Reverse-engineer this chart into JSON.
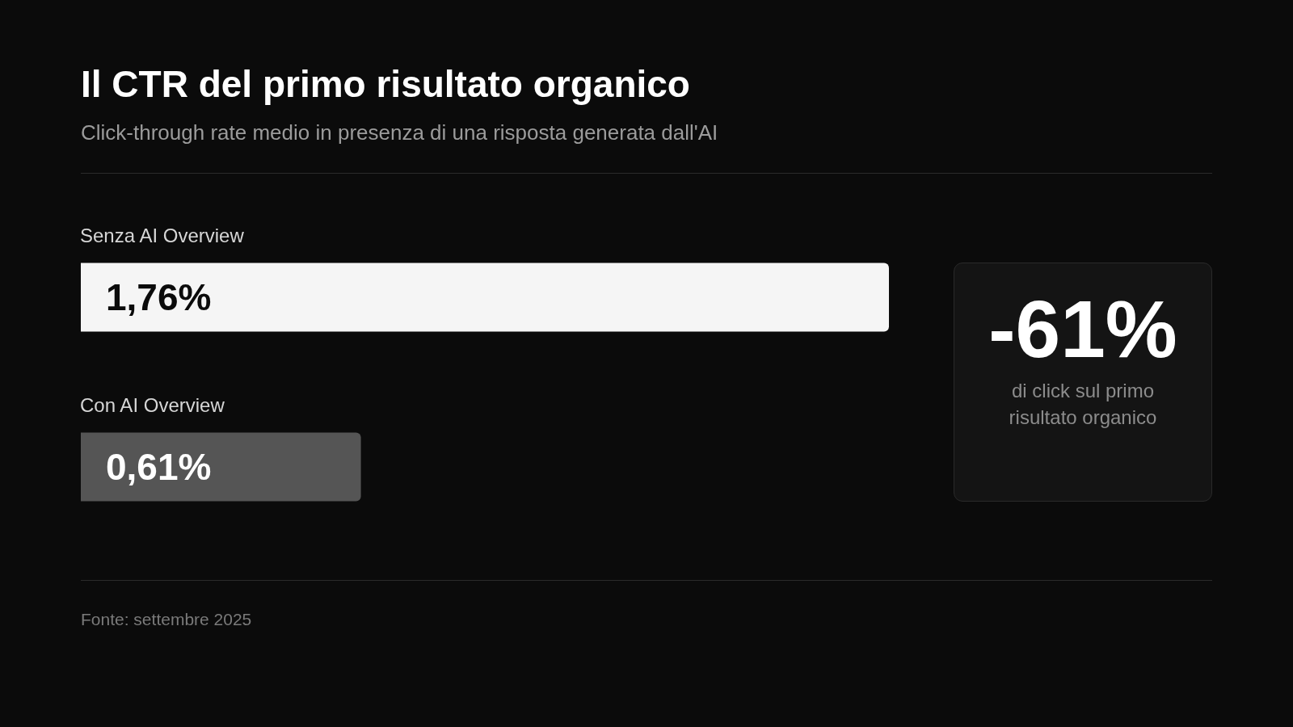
{
  "chart_data": {
    "type": "bar",
    "orientation": "horizontal",
    "title": "Il CTR del primo risultato organico",
    "subtitle": "Click-through rate medio in presenza di una risposta generata dall'AI",
    "categories": [
      "Senza AI Overview",
      "Con AI Overview"
    ],
    "values": [
      1.76,
      0.61
    ],
    "colors": [
      "#f5f5f5",
      "#555555"
    ],
    "value_labels": [
      "1,76%",
      "0,61%"
    ],
    "tick_labels": "y",
    "annotations": [
      "-61%",
      "di click sul primo risultato organico",
      "Fonte: settembre 2025"
    ]
  }
}
